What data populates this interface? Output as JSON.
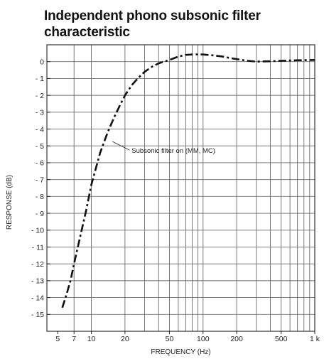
{
  "chart_data": {
    "type": "line",
    "title": "Independent phono subsonic filter characteristic",
    "title_lines": [
      "Independent phono subsonic filter",
      "characteristic"
    ],
    "xlabel": "FREQUENCY (Hz)",
    "ylabel": "RESPONSE (dB)",
    "x_scale": "log",
    "xlim": [
      4,
      1000
    ],
    "ylim": [
      -16,
      1
    ],
    "grid": true,
    "x_grid_values": [
      4,
      7,
      10,
      20,
      30,
      40,
      50,
      60,
      70,
      80,
      90,
      100,
      200,
      300,
      400,
      500,
      600,
      700,
      800,
      900,
      1000
    ],
    "x_ticks": [
      {
        "value": 5,
        "label": "5"
      },
      {
        "value": 7,
        "label": "7"
      },
      {
        "value": 10,
        "label": "10"
      },
      {
        "value": 20,
        "label": "20"
      },
      {
        "value": 50,
        "label": "50"
      },
      {
        "value": 100,
        "label": "100"
      },
      {
        "value": 200,
        "label": "200"
      },
      {
        "value": 500,
        "label": "500"
      },
      {
        "value": 1000,
        "label": "1 k"
      }
    ],
    "y_ticks": [
      {
        "value": 0,
        "label": "0"
      },
      {
        "value": -1,
        "label": "- 1"
      },
      {
        "value": -2,
        "label": "- 2"
      },
      {
        "value": -3,
        "label": "- 3"
      },
      {
        "value": -4,
        "label": "- 4"
      },
      {
        "value": -5,
        "label": "- 5"
      },
      {
        "value": -6,
        "label": "- 6"
      },
      {
        "value": -7,
        "label": "- 7"
      },
      {
        "value": -8,
        "label": "- 8"
      },
      {
        "value": -9,
        "label": "- 9"
      },
      {
        "value": -10,
        "label": "- 10"
      },
      {
        "value": -11,
        "label": "- 11"
      },
      {
        "value": -12,
        "label": "- 12"
      },
      {
        "value": -13,
        "label": "- 13"
      },
      {
        "value": -14,
        "label": "- 14"
      },
      {
        "value": -15,
        "label": "- 15"
      }
    ],
    "series": [
      {
        "name": "Subsonic filter on (MM, MC)",
        "line_style": "dash-dot",
        "color": "#111111",
        "x": [
          5.5,
          6,
          6.5,
          7,
          8,
          9,
          10,
          11,
          12,
          14,
          16,
          18,
          20,
          23,
          26,
          30,
          35,
          40,
          50,
          60,
          70,
          80,
          90,
          100,
          120,
          150,
          180,
          200,
          250,
          300,
          400,
          500,
          700,
          1000
        ],
        "y": [
          -14.6,
          -13.8,
          -13.0,
          -12.0,
          -10.3,
          -8.8,
          -7.3,
          -6.3,
          -5.4,
          -4.2,
          -3.3,
          -2.6,
          -2.0,
          -1.4,
          -1.0,
          -0.6,
          -0.3,
          -0.1,
          0.1,
          0.3,
          0.4,
          0.42,
          0.43,
          0.42,
          0.38,
          0.3,
          0.2,
          0.15,
          0.05,
          0.0,
          0.02,
          0.05,
          0.08,
          0.1
        ]
      }
    ],
    "annotations": [
      {
        "text": "Subsonic filter on (MM, MC)",
        "points_to": {
          "x": 15,
          "y": -4.7
        }
      }
    ]
  }
}
